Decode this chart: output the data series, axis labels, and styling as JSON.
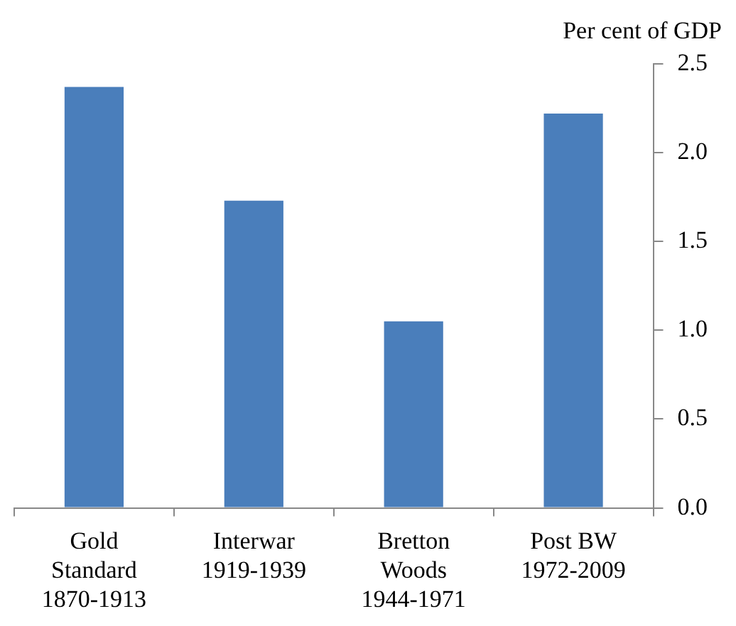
{
  "chart_data": {
    "type": "bar",
    "ylabel": "Per cent of GDP",
    "categories": [
      "Gold\nStandard\n1870-1913",
      "Interwar\n1919-1939",
      "Bretton\nWoods\n1944-1971",
      "Post BW\n1972-2009"
    ],
    "values": [
      2.37,
      1.73,
      1.05,
      2.22
    ],
    "color": "#4a7ebb",
    "ylim": [
      0,
      2.5
    ],
    "yticks": [
      {
        "value": 0,
        "label": "0.0"
      },
      {
        "value": 0.5,
        "label": "0.5"
      },
      {
        "value": 1,
        "label": "1.0"
      },
      {
        "value": 1.5,
        "label": "1.5"
      },
      {
        "value": 2,
        "label": "2.0"
      },
      {
        "value": 2.5,
        "label": "2.5"
      }
    ],
    "grid": false,
    "legend": false
  }
}
